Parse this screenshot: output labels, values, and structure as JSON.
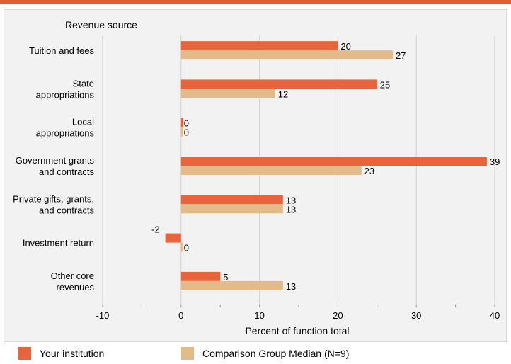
{
  "colors": {
    "top_bar": "#e05d35",
    "panel_bg": "#f2f2f2",
    "grid": "#d0d0d0",
    "series_1": "#e8643d",
    "series_2": "#e3bb8a"
  },
  "chart_data": {
    "type": "bar",
    "orientation": "horizontal",
    "category_axis_title": "Revenue source",
    "xlabel": "Percent of function total",
    "xlim": [
      -10,
      40
    ],
    "xticks": [
      -10,
      0,
      10,
      20,
      30,
      40
    ],
    "grid": true,
    "legend_position": "bottom",
    "categories": [
      [
        "Tuition and fees"
      ],
      [
        "State",
        "appropriations"
      ],
      [
        "Local",
        "appropriations"
      ],
      [
        "Government grants",
        "and contracts"
      ],
      [
        "Private gifts, grants,",
        "and contracts"
      ],
      [
        "Investment return"
      ],
      [
        "Other core",
        "revenues"
      ]
    ],
    "series": [
      {
        "name": "Your institution",
        "values": [
          20,
          25,
          0,
          39,
          13,
          -2,
          5
        ]
      },
      {
        "name": "Comparison Group Median (N=9)",
        "values": [
          27,
          12,
          0,
          23,
          13,
          0,
          13
        ]
      }
    ]
  }
}
